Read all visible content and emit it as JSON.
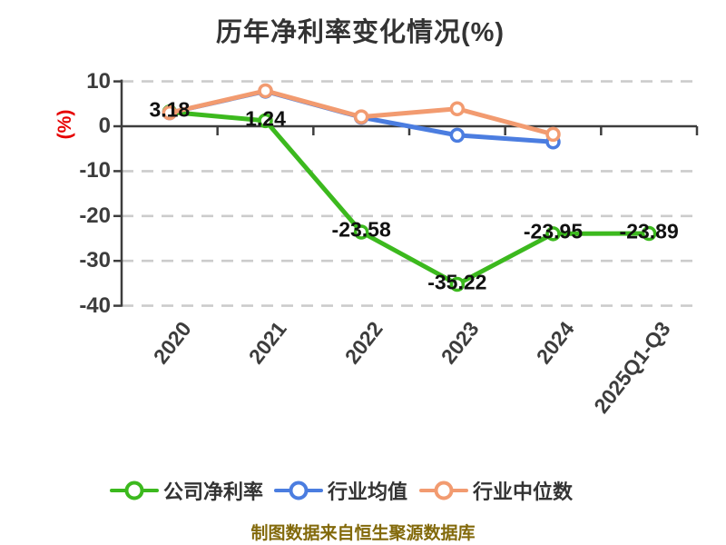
{
  "title": "历年净利率变化情况(%)",
  "footer": "制图数据来自恒生聚源数据库",
  "chart_data": {
    "type": "line",
    "title": "历年净利率变化情况(%)",
    "y_axis_label": "(%)",
    "categories": [
      "2020",
      "2021",
      "2022",
      "2023",
      "2024",
      "2025Q1-Q3"
    ],
    "y_ticks": [
      10,
      0,
      -10,
      -20,
      -30,
      -40
    ],
    "ylim": [
      -40,
      10
    ],
    "grid": "horizontal-dashed",
    "legend_position": "bottom",
    "series": [
      {
        "name": "公司净利率",
        "color": "#3cb91e",
        "values": [
          3.18,
          1.24,
          -23.58,
          -35.22,
          -23.95,
          -23.89
        ],
        "data_labels": [
          "3.18",
          "1.24",
          "-23.58",
          "-35.22",
          "-23.95",
          "-23.89"
        ]
      },
      {
        "name": "行业均值",
        "color": "#4b7de0",
        "values": [
          3.0,
          7.8,
          2.0,
          -2.0,
          -3.5,
          null
        ],
        "data_labels": null
      },
      {
        "name": "行业中位数",
        "color": "#f29b70",
        "values": [
          3.0,
          7.9,
          2.1,
          3.9,
          -1.8,
          null
        ],
        "data_labels": null
      }
    ],
    "colors": {
      "axis": "#3d3d3d",
      "grid": "#cccccc",
      "title": "#333333",
      "y_axis_label": "#e60000",
      "data_label": "#111111",
      "footer": "#82690a",
      "marker_fill": "#ffffff"
    }
  }
}
